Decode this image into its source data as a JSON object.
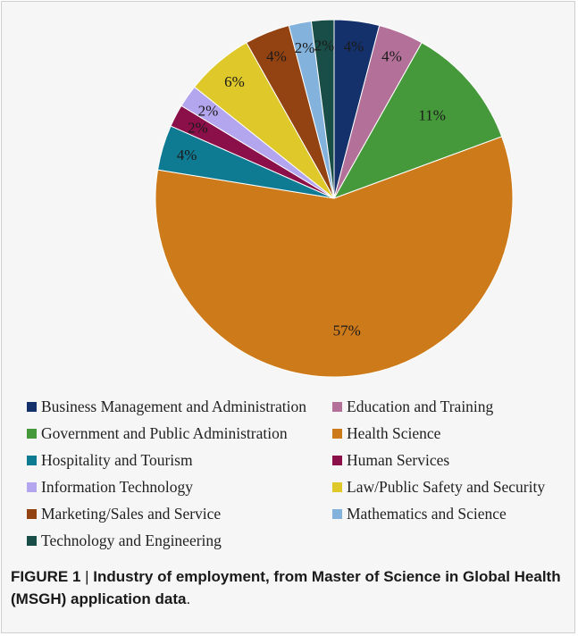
{
  "chart_data": {
    "type": "pie",
    "categories": [
      "Business Management and Administration",
      "Education and Training",
      "Government and Public Administration",
      "Health Science",
      "Hospitality and Tourism",
      "Human Services",
      "Information Technology",
      "Law/Public Safety and Security",
      "Marketing/Sales and Service",
      "Mathematics and Science",
      "Technology and Engineering"
    ],
    "values": [
      4,
      4,
      11,
      57,
      4,
      2,
      2,
      6,
      4,
      2,
      2
    ],
    "data_labels": [
      "4%",
      "4%",
      "11%",
      "57%",
      "4%",
      "2%",
      "2%",
      "6%",
      "4%",
      "2%",
      "2%"
    ],
    "colors": [
      "#14316b",
      "#b37199",
      "#46993b",
      "#cd7a1a",
      "#0f7b93",
      "#8b1049",
      "#b3a6ee",
      "#dfc82a",
      "#934312",
      "#83b3dc",
      "#194d47"
    ],
    "legend_position": "bottom",
    "legend_columns": 2
  },
  "caption": {
    "label": "FIGURE 1",
    "separator": " | ",
    "text": "Industry of employment, from Master of Science in Global Health (MSGH) application data",
    "end": "."
  }
}
